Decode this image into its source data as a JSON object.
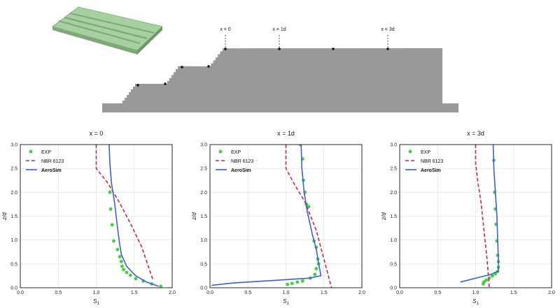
{
  "schematic": {
    "markers": [
      "x = 0",
      "x = 1d",
      "x = 3d"
    ]
  },
  "chart_data": [
    {
      "type": "line",
      "title": "x = 0",
      "xlabel": "S1",
      "ylabel": "z/d",
      "xlim": [
        0,
        2.0
      ],
      "ylim": [
        0,
        3.0
      ],
      "xticks": [
        "0.0",
        "0.5",
        "1.0",
        "1.5",
        "2.0"
      ],
      "yticks": [
        "0.0",
        "0.5",
        "1.0",
        "1.5",
        "2.0",
        "2.5",
        "3.0"
      ],
      "grid": true,
      "legend": "top-left",
      "series": [
        {
          "name": "EXP",
          "kind": "points",
          "color": "#3fcf3f",
          "x": [
            1.85,
            1.73,
            1.62,
            1.52,
            1.45,
            1.4,
            1.36,
            1.34,
            1.33,
            1.31,
            1.28,
            1.23,
            1.21,
            1.19,
            1.18
          ],
          "y": [
            0.03,
            0.08,
            0.14,
            0.19,
            0.26,
            0.32,
            0.38,
            0.45,
            0.55,
            0.65,
            0.8,
            0.98,
            1.32,
            1.65,
            2.0
          ]
        },
        {
          "name": "NBR 6123",
          "kind": "dashed",
          "color": "#d6243a",
          "x": [
            1.0,
            1.0,
            1.15,
            1.3,
            1.45,
            1.6,
            1.75
          ],
          "y": [
            3.0,
            2.5,
            2.2,
            1.8,
            1.35,
            0.85,
            0.15
          ]
        },
        {
          "name": "AeroSim",
          "kind": "solid",
          "color": "#3b5fd8",
          "x": [
            1.17,
            1.18,
            1.2,
            1.24,
            1.27,
            1.3,
            1.33,
            1.4,
            1.52,
            1.66,
            1.82
          ],
          "y": [
            3.0,
            2.6,
            2.2,
            1.8,
            1.4,
            1.0,
            0.7,
            0.45,
            0.25,
            0.12,
            0.03
          ]
        }
      ]
    },
    {
      "type": "line",
      "title": "x = 1d",
      "xlabel": "S1",
      "ylabel": "z/d",
      "xlim": [
        0,
        2.0
      ],
      "ylim": [
        0,
        3.0
      ],
      "xticks": [
        "0.0",
        "0.5",
        "1.0",
        "1.5",
        "2.0"
      ],
      "yticks": [
        "0.0",
        "0.5",
        "1.0",
        "1.5",
        "2.0",
        "2.5",
        "3.0"
      ],
      "grid": true,
      "legend": "top-left",
      "series": [
        {
          "name": "EXP",
          "kind": "points",
          "color": "#3fcf3f",
          "x": [
            1.02,
            1.08,
            1.15,
            1.22,
            1.32,
            1.38,
            1.4,
            1.43,
            1.42,
            1.4,
            1.37,
            1.3,
            1.27,
            1.25,
            1.23,
            1.22,
            1.19
          ],
          "y": [
            0.07,
            0.09,
            0.12,
            0.14,
            0.2,
            0.28,
            0.4,
            0.5,
            0.6,
            0.85,
            0.98,
            1.7,
            1.75,
            2.0,
            2.25,
            2.7,
            3.0
          ]
        },
        {
          "name": "NBR 6123",
          "kind": "dashed",
          "color": "#d6243a",
          "x": [
            1.0,
            1.0,
            1.1,
            1.25,
            1.4,
            1.5,
            1.6
          ],
          "y": [
            3.0,
            2.5,
            2.2,
            1.8,
            1.2,
            0.6,
            0.0
          ]
        },
        {
          "name": "AeroSim",
          "kind": "solid",
          "color": "#3b5fd8",
          "x": [
            1.2,
            1.21,
            1.24,
            1.28,
            1.35,
            1.4,
            1.43,
            1.45,
            1.46,
            1.3,
            0.8,
            0.3,
            0.02
          ],
          "y": [
            3.0,
            2.5,
            2.0,
            1.6,
            1.1,
            0.8,
            0.5,
            0.35,
            0.25,
            0.2,
            0.15,
            0.1,
            0.05
          ]
        }
      ]
    },
    {
      "type": "line",
      "title": "x = 3d",
      "xlabel": "S1",
      "ylabel": "z/d",
      "xlim": [
        0,
        2.0
      ],
      "ylim": [
        0,
        3.0
      ],
      "xticks": [
        "0.0",
        "0.5",
        "1.0",
        "1.5",
        "2.0"
      ],
      "yticks": [
        "0.0",
        "0.5",
        "1.0",
        "1.5",
        "2.0",
        "2.5",
        "3.0"
      ],
      "grid": true,
      "legend": "top-left",
      "series": [
        {
          "name": "EXP",
          "kind": "points",
          "color": "#3fcf3f",
          "x": [
            1.1,
            1.11,
            1.14,
            1.18,
            1.22,
            1.26,
            1.29,
            1.3,
            1.3,
            1.29,
            1.28,
            1.27,
            1.26,
            1.25,
            1.24
          ],
          "y": [
            0.08,
            0.12,
            0.16,
            0.2,
            0.25,
            0.29,
            0.34,
            0.43,
            0.55,
            0.68,
            0.98,
            1.33,
            1.65,
            2.0,
            2.67
          ]
        },
        {
          "name": "NBR 6123",
          "kind": "dashed",
          "color": "#d6243a",
          "x": [
            1.0,
            1.0,
            1.03,
            1.07,
            1.11,
            1.15,
            1.18
          ],
          "y": [
            3.0,
            2.6,
            2.2,
            1.8,
            1.2,
            0.6,
            0.0
          ]
        },
        {
          "name": "AeroSim",
          "kind": "solid",
          "color": "#3b5fd8",
          "x": [
            1.23,
            1.24,
            1.26,
            1.28,
            1.29,
            1.3,
            1.3,
            1.2,
            0.8
          ],
          "y": [
            3.0,
            2.5,
            2.0,
            1.5,
            1.0,
            0.6,
            0.35,
            0.28,
            0.12
          ]
        }
      ]
    }
  ]
}
